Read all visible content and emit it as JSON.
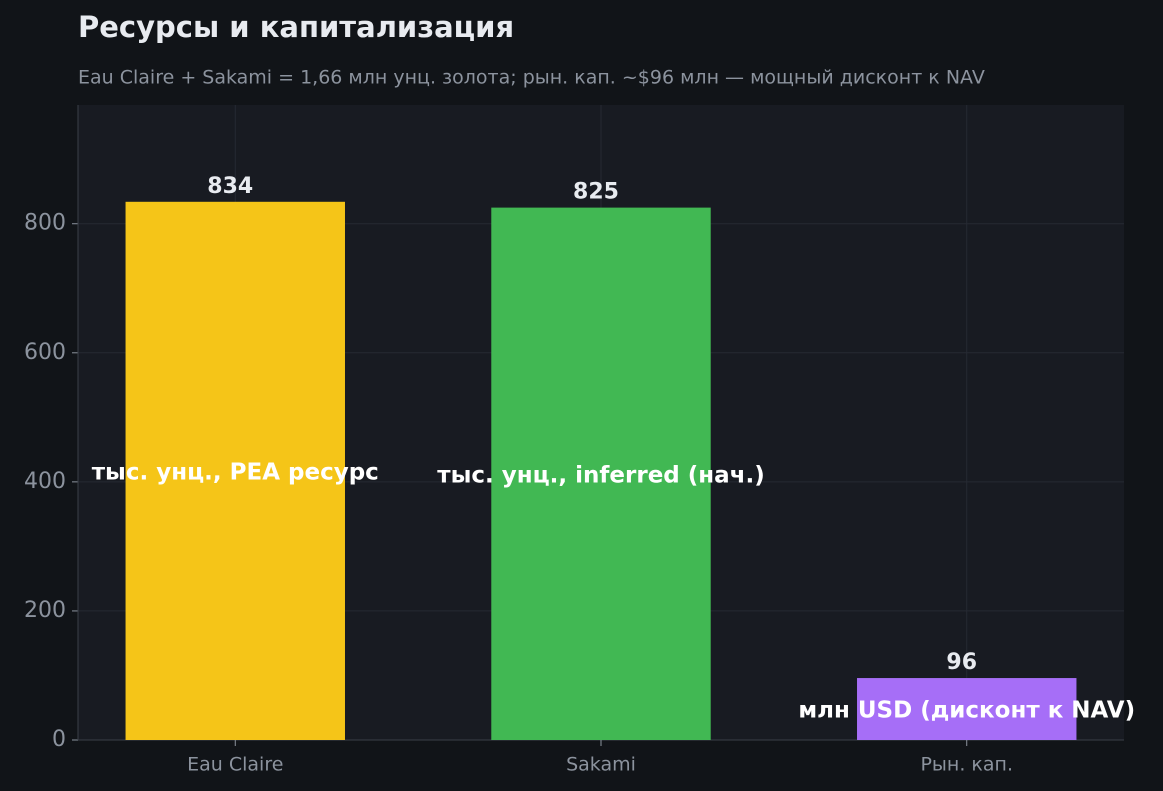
{
  "chart_data": {
    "type": "bar",
    "title": "Ресурсы и капитализация",
    "subtitle": "Eau Claire + Sakami = 1,66 млн унц. золота; рын. кап. ~$96 млн — мощный дисконт к NAV",
    "categories": [
      "Eau Claire",
      "Sakami",
      "Рын. кап."
    ],
    "values": [
      834,
      825,
      96
    ],
    "colors": [
      "#f5c518",
      "#41b853",
      "#a66ef7"
    ],
    "bar_labels": [
      "тыс. унц., PEA ресурс",
      "тыс. унц., inferred (нач.)",
      "млн USD (дисконт к NAV)"
    ],
    "ylim": [
      0,
      984
    ],
    "yticks": [
      0,
      200,
      400,
      600,
      800
    ],
    "grid": true
  }
}
